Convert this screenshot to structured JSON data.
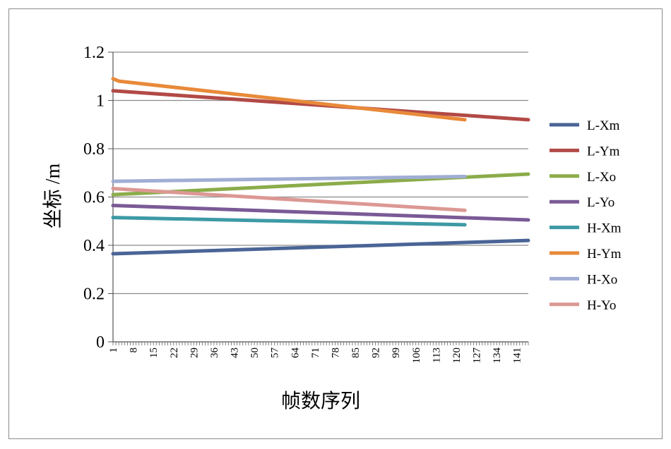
{
  "chart_data": {
    "type": "line",
    "xlabel": "帧数序列",
    "ylabel": "坐标 /m",
    "ylim": [
      0,
      1.2
    ],
    "yticks": [
      "0",
      "0.2",
      "0.4",
      "0.6",
      "0.8",
      "1",
      "1.2"
    ],
    "xlim": [
      1,
      145
    ],
    "xticks": [
      "1",
      "8",
      "15",
      "22",
      "29",
      "36",
      "43",
      "50",
      "57",
      "64",
      "71",
      "78",
      "85",
      "92",
      "99",
      "106",
      "113",
      "120",
      "127",
      "134",
      "141"
    ],
    "grid": "horizontal",
    "legend_position": "right",
    "series": [
      {
        "name": "L-Xm",
        "color": "#4a6496",
        "x": [
          1,
          145
        ],
        "y": [
          0.365,
          0.42
        ]
      },
      {
        "name": "L-Ym",
        "color": "#b24a46",
        "x": [
          1,
          145
        ],
        "y": [
          1.04,
          0.92
        ]
      },
      {
        "name": "L-Xo",
        "color": "#8bac4a",
        "x": [
          1,
          145
        ],
        "y": [
          0.61,
          0.695
        ]
      },
      {
        "name": "L-Yo",
        "color": "#7a5a96",
        "x": [
          1,
          145
        ],
        "y": [
          0.565,
          0.505
        ]
      },
      {
        "name": "H-Xm",
        "color": "#3d9aa5",
        "x": [
          1,
          123
        ],
        "y": [
          0.515,
          0.485
        ]
      },
      {
        "name": "H-Ym",
        "color": "#e88a3a",
        "x": [
          1,
          3,
          123
        ],
        "y": [
          1.09,
          1.08,
          0.92
        ]
      },
      {
        "name": "H-Xo",
        "color": "#a0aed4",
        "x": [
          1,
          123
        ],
        "y": [
          0.665,
          0.685
        ]
      },
      {
        "name": "H-Yo",
        "color": "#dc9894",
        "x": [
          1,
          123
        ],
        "y": [
          0.635,
          0.545
        ]
      }
    ]
  }
}
